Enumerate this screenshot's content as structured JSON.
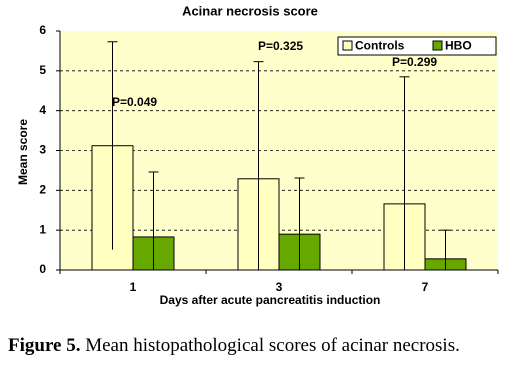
{
  "chart_data": {
    "type": "bar",
    "title": "Acinar necrosis score",
    "x_label": "Days after acute pancreatitis induction",
    "y_label": "Mean score",
    "categories": [
      "1",
      "3",
      "7"
    ],
    "series": [
      {
        "name": "Controls",
        "color": "#ffffc0",
        "values": [
          3.12,
          2.29,
          1.66
        ],
        "errors": [
          2.61,
          2.94,
          3.19
        ]
      },
      {
        "name": "HBO",
        "color": "#66a800",
        "values": [
          0.83,
          0.9,
          0.28
        ],
        "errors": [
          1.63,
          1.41,
          0.72
        ]
      }
    ],
    "annotations": [
      "P=0.049",
      "P=0.325",
      "P=0.299"
    ],
    "ylim": [
      0,
      6
    ],
    "yticks": [
      0,
      1,
      2,
      3,
      4,
      5,
      6
    ],
    "grid": true,
    "legend": "top-right",
    "background": "#ffffcc"
  },
  "caption": {
    "label": "Figure 5.",
    "text": "Mean histopathological scores of acinar necrosis."
  }
}
